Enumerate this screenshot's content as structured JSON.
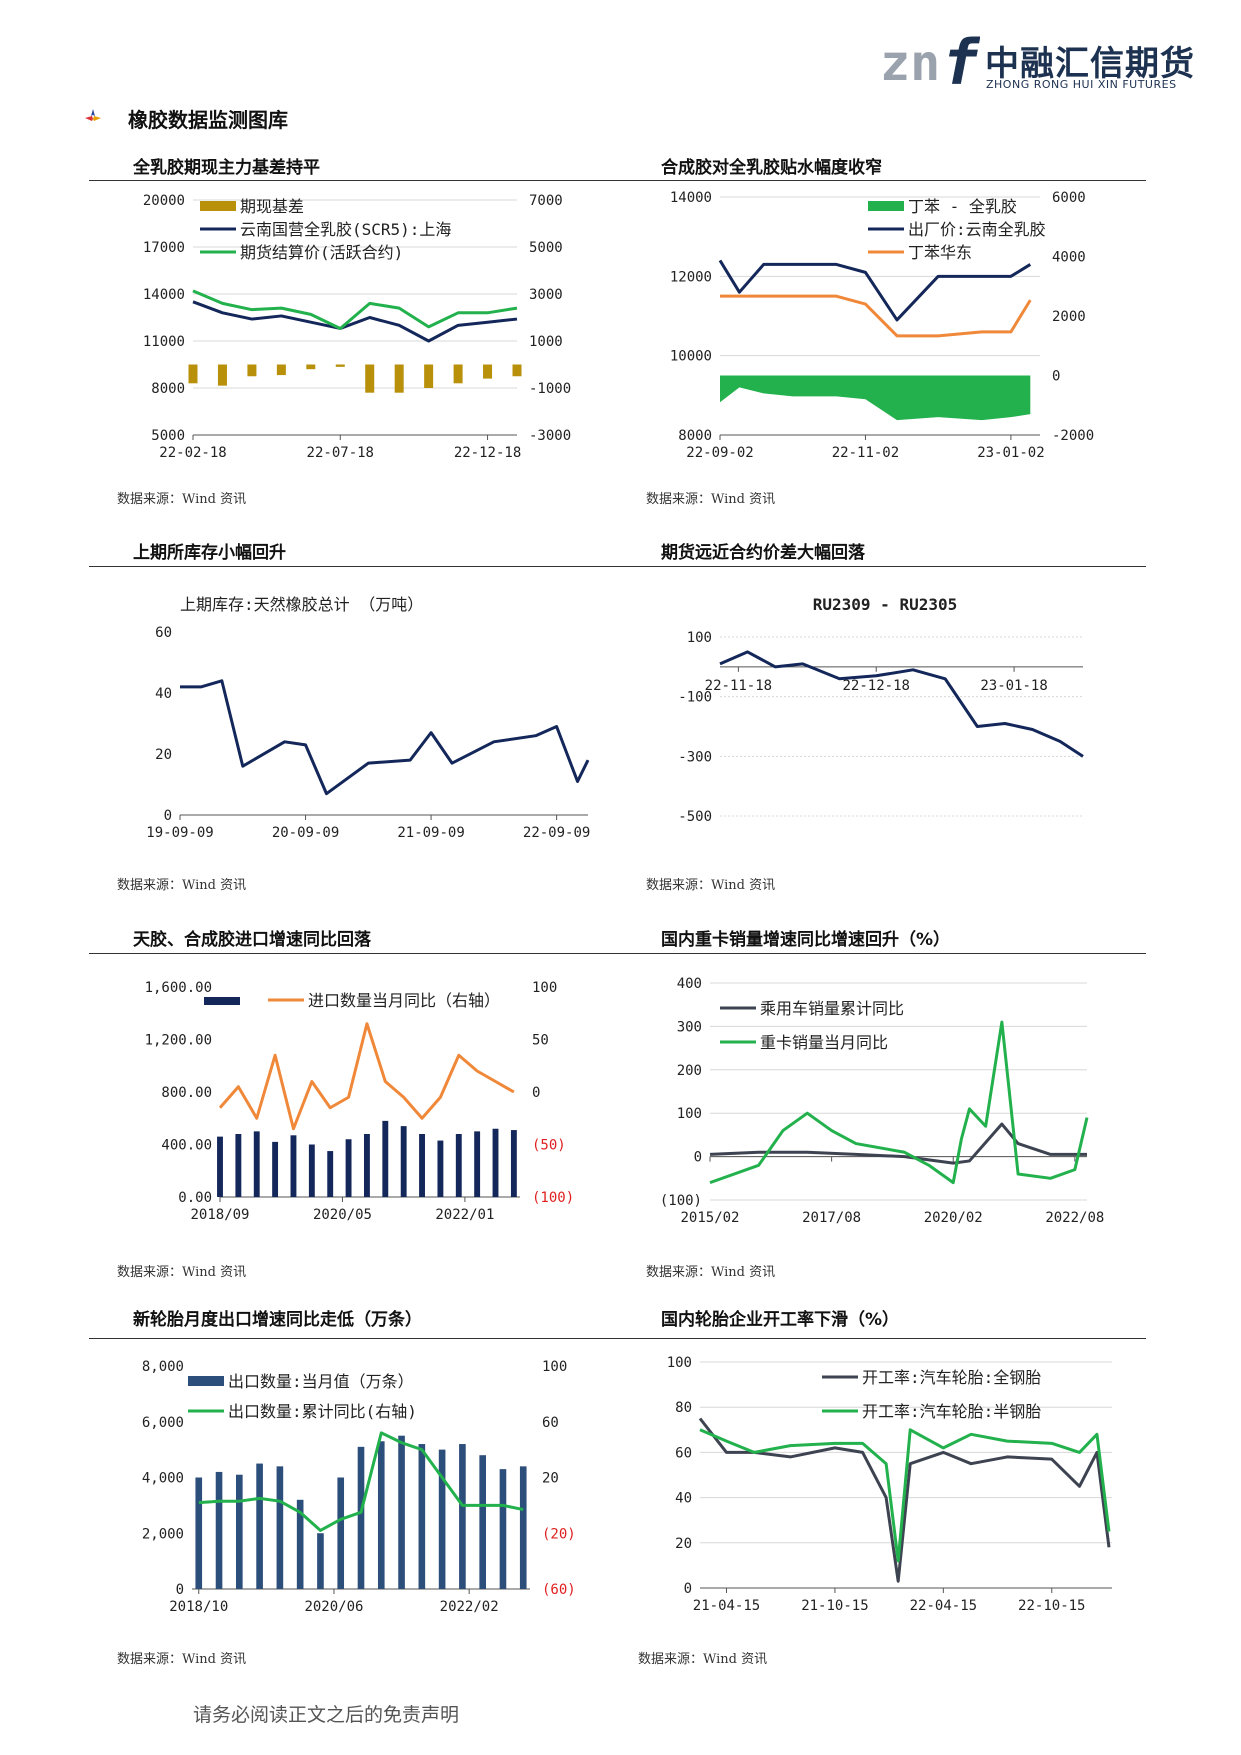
{
  "brand": {
    "mark": "znf",
    "name_cn": "中融汇信期货",
    "name_en": "ZHONG RONG HUI XIN FUTURES",
    "colors": {
      "navy": "#1d3150",
      "grey": "#9aa3ad"
    }
  },
  "section_title": "橡胶数据监测图库",
  "footer": "请务必阅读正文之后的免责声明",
  "charts": [
    {
      "title": "全乳胶期现主力基差持平",
      "source": "数据来源：Wind 资讯"
    },
    {
      "title": "合成胶对全乳胶贴水幅度收窄",
      "source": "数据来源：Wind 资讯"
    },
    {
      "title": "上期所库存小幅回升",
      "source": "数据来源：Wind 资讯"
    },
    {
      "title": "期货远近合约价差大幅回落",
      "source": "数据来源：Wind 资讯"
    },
    {
      "title": "天胶、合成胶进口增速同比回落",
      "source": "数据来源：Wind 资讯"
    },
    {
      "title": "国内重卡销量增速同比增速回升（%）",
      "source": "数据来源：Wind 资讯"
    },
    {
      "title": "新轮胎月度出口增速同比走低（万条）",
      "source": "数据来源：Wind 资讯"
    },
    {
      "title": "国内轮胎企业开工率下滑（%）",
      "source": "数据来源：Wind 资讯"
    }
  ],
  "chart_data": [
    {
      "type": "line",
      "title": "",
      "left_ticks": [
        "20000",
        "17000",
        "14000",
        "11000",
        "8000",
        "5000"
      ],
      "right_ticks": [
        "7000",
        "5000",
        "3000",
        "1000",
        "-1000",
        "-3000"
      ],
      "x_ticks": [
        "22-02-18",
        "22-07-18",
        "22-12-18"
      ],
      "ylim_left": [
        5000,
        20000
      ],
      "ylim_right": [
        -3000,
        7000
      ],
      "series": [
        {
          "name": "期现基差",
          "kind": "bar",
          "axis": "right",
          "color": "#b8900a",
          "x": [
            "22-02-18",
            "22-03-18",
            "22-04-18",
            "22-05-18",
            "22-06-18",
            "22-07-18",
            "22-08-18",
            "22-09-18",
            "22-10-18",
            "22-11-18",
            "22-12-18",
            "23-01-18"
          ],
          "values": [
            -800,
            -900,
            -500,
            -450,
            -200,
            -100,
            -1200,
            -1200,
            -1000,
            -800,
            -600,
            -500
          ]
        },
        {
          "name": "云南国营全乳胶(SCR5):上海",
          "kind": "line",
          "axis": "left",
          "color": "#14275a",
          "x": [
            "22-02-18",
            "22-03-18",
            "22-04-18",
            "22-05-18",
            "22-06-18",
            "22-07-18",
            "22-08-18",
            "22-09-18",
            "22-10-18",
            "22-11-18",
            "22-12-18",
            "23-01-18"
          ],
          "values": [
            13500,
            12800,
            12400,
            12600,
            12200,
            11800,
            12500,
            12000,
            11000,
            12000,
            12200,
            12400
          ]
        },
        {
          "name": "期货结算价(活跃合约)",
          "kind": "line",
          "axis": "left",
          "color": "#22b14c",
          "x": [
            "22-02-18",
            "22-03-18",
            "22-04-18",
            "22-05-18",
            "22-06-18",
            "22-07-18",
            "22-08-18",
            "22-09-18",
            "22-10-18",
            "22-11-18",
            "22-12-18",
            "23-01-18"
          ],
          "values": [
            14200,
            13400,
            13000,
            13100,
            12700,
            11800,
            13400,
            13100,
            11900,
            12800,
            12800,
            13100
          ]
        }
      ]
    },
    {
      "type": "line",
      "title": "",
      "left_ticks": [
        "14000",
        "12000",
        "10000",
        "8000"
      ],
      "right_ticks": [
        "6000",
        "4000",
        "2000",
        "0",
        "-2000"
      ],
      "x_ticks": [
        "22-09-02",
        "22-11-02",
        "23-01-02"
      ],
      "ylim_left": [
        8000,
        14000
      ],
      "ylim_right": [
        -2000,
        6000
      ],
      "series": [
        {
          "name": "丁苯 - 全乳胶",
          "kind": "area",
          "axis": "right",
          "color": "#22b14c",
          "x": [
            "22-09-02",
            "22-09-10",
            "22-09-20",
            "22-10-02",
            "22-10-20",
            "22-11-02",
            "22-11-15",
            "22-12-02",
            "22-12-20",
            "23-01-02",
            "23-01-10"
          ],
          "values": [
            -900,
            -400,
            -600,
            -700,
            -700,
            -800,
            -1500,
            -1400,
            -1500,
            -1400,
            -1300
          ]
        },
        {
          "name": "出厂价:云南全乳胶",
          "kind": "line",
          "axis": "left",
          "color": "#14275a",
          "x": [
            "22-09-02",
            "22-09-10",
            "22-09-20",
            "22-10-02",
            "22-10-20",
            "22-11-02",
            "22-11-15",
            "22-12-02",
            "22-12-20",
            "23-01-02",
            "23-01-10"
          ],
          "values": [
            12400,
            11600,
            12300,
            12300,
            12300,
            12100,
            10900,
            12000,
            12000,
            12000,
            12300
          ]
        },
        {
          "name": "丁苯华东",
          "kind": "line",
          "axis": "left",
          "color": "#f0883a",
          "x": [
            "22-09-02",
            "22-09-10",
            "22-09-20",
            "22-10-02",
            "22-10-20",
            "22-11-02",
            "22-11-15",
            "22-12-02",
            "22-12-20",
            "23-01-02",
            "23-01-10"
          ],
          "values": [
            11500,
            11500,
            11500,
            11500,
            11500,
            11300,
            10500,
            10500,
            10600,
            10600,
            11400
          ]
        }
      ]
    },
    {
      "type": "line",
      "title": "上期库存:天然橡胶总计 （万吨）",
      "y_ticks": [
        "60",
        "40",
        "20",
        "0"
      ],
      "x_ticks": [
        "19-09-09",
        "20-09-09",
        "21-09-09",
        "22-09-09"
      ],
      "ylim": [
        0,
        60
      ],
      "series": [
        {
          "name": "",
          "color": "#14275a",
          "x": [
            "19-09-09",
            "19-11-09",
            "20-01-09",
            "20-03-09",
            "20-07-09",
            "20-09-09",
            "20-11-09",
            "21-03-09",
            "21-07-09",
            "21-09-09",
            "21-11-09",
            "22-03-09",
            "22-07-09",
            "22-09-09",
            "22-11-09",
            "22-12-09"
          ],
          "values": [
            42,
            42,
            44,
            16,
            24,
            23,
            7,
            17,
            18,
            27,
            17,
            24,
            26,
            29,
            11,
            18
          ]
        }
      ]
    },
    {
      "type": "line",
      "title": "RU2309 - RU2305",
      "y_ticks": [
        "100",
        "-100",
        "-300",
        "-500"
      ],
      "x_ticks": [
        "22-11-18",
        "22-12-18",
        "23-01-18"
      ],
      "ylim": [
        -500,
        100
      ],
      "series": [
        {
          "name": "",
          "color": "#14275a",
          "x": [
            "22-11-14",
            "22-11-20",
            "22-11-26",
            "22-12-02",
            "22-12-10",
            "22-12-18",
            "22-12-26",
            "23-01-03",
            "23-01-10",
            "23-01-16",
            "23-01-22",
            "23-01-28",
            "23-02-03"
          ],
          "values": [
            10,
            50,
            0,
            10,
            -40,
            -30,
            -10,
            -40,
            -200,
            -190,
            -210,
            -250,
            -300
          ]
        }
      ]
    },
    {
      "type": "bar",
      "title": "",
      "left_ticks": [
        "1,600.00",
        "1,200.00",
        "800.00",
        "400.00",
        "0.00"
      ],
      "right_ticks": [
        "100",
        "50",
        "0",
        "(50)",
        "(100)"
      ],
      "x_ticks": [
        "2018/09",
        "2020/05",
        "2022/01"
      ],
      "ylim_left": [
        0,
        1600
      ],
      "ylim_right": [
        -100,
        100
      ],
      "series": [
        {
          "name": "",
          "kind": "bar",
          "axis": "left",
          "color": "#14275a",
          "x": [
            "2018/09",
            "2018/12",
            "2019/03",
            "2019/06",
            "2019/09",
            "2019/12",
            "2020/03",
            "2020/06",
            "2020/09",
            "2020/12",
            "2021/03",
            "2021/06",
            "2021/09",
            "2021/12",
            "2022/03",
            "2022/06",
            "2022/09"
          ],
          "values": [
            460,
            480,
            500,
            420,
            470,
            400,
            350,
            440,
            480,
            580,
            540,
            480,
            430,
            480,
            500,
            520,
            510
          ]
        },
        {
          "name": "进口数量当月同比（右轴）",
          "kind": "line",
          "axis": "right",
          "color": "#f0883a",
          "x": [
            "2018/09",
            "2018/12",
            "2019/03",
            "2019/06",
            "2019/09",
            "2019/12",
            "2020/03",
            "2020/06",
            "2020/09",
            "2020/12",
            "2021/03",
            "2021/06",
            "2021/09",
            "2021/12",
            "2022/03",
            "2022/06",
            "2022/09"
          ],
          "values": [
            -15,
            5,
            -25,
            35,
            -35,
            10,
            -15,
            -5,
            65,
            10,
            -5,
            -25,
            -5,
            35,
            20,
            10,
            0
          ]
        }
      ]
    },
    {
      "type": "line",
      "title": "",
      "y_ticks": [
        "400",
        "300",
        "200",
        "100",
        "0",
        "(100)"
      ],
      "x_ticks": [
        "2015/02",
        "2017/08",
        "2020/02",
        "2022/08"
      ],
      "ylim": [
        -100,
        400
      ],
      "series": [
        {
          "name": "乘用车销量累计同比",
          "color": "#3d4350",
          "x": [
            "2015/02",
            "2016/02",
            "2017/02",
            "2018/02",
            "2019/02",
            "2020/02",
            "2020/06",
            "2021/02",
            "2021/06",
            "2022/02",
            "2022/08",
            "2022/11"
          ],
          "values": [
            5,
            10,
            10,
            5,
            0,
            -15,
            -10,
            75,
            30,
            5,
            5,
            5
          ]
        },
        {
          "name": "重卡销量当月同比",
          "color": "#22b14c",
          "x": [
            "2015/02",
            "2016/02",
            "2016/08",
            "2017/02",
            "2017/08",
            "2018/02",
            "2019/02",
            "2019/08",
            "2020/02",
            "2020/04",
            "2020/06",
            "2020/10",
            "2021/02",
            "2021/06",
            "2022/02",
            "2022/08",
            "2022/11"
          ],
          "values": [
            -60,
            -20,
            60,
            100,
            60,
            30,
            10,
            -20,
            -60,
            40,
            110,
            70,
            310,
            -40,
            -50,
            -30,
            90
          ]
        }
      ]
    },
    {
      "type": "bar",
      "title": "",
      "left_ticks": [
        "8,000",
        "6,000",
        "4,000",
        "2,000",
        "0"
      ],
      "right_ticks": [
        "100",
        "60",
        "20",
        "(20)",
        "(60)"
      ],
      "x_ticks": [
        "2018/10",
        "2020/06",
        "2022/02"
      ],
      "ylim_left": [
        0,
        8000
      ],
      "ylim_right": [
        -60,
        100
      ],
      "series": [
        {
          "name": "出口数量:当月值（万条）",
          "kind": "bar",
          "axis": "left",
          "color": "#2c4e7b",
          "x": [
            "2018/10",
            "2019/01",
            "2019/04",
            "2019/07",
            "2019/10",
            "2020/01",
            "2020/04",
            "2020/07",
            "2020/10",
            "2021/01",
            "2021/04",
            "2021/07",
            "2021/10",
            "2022/01",
            "2022/04",
            "2022/07",
            "2022/10"
          ],
          "values": [
            4000,
            4200,
            4100,
            4500,
            4400,
            3200,
            2000,
            4000,
            5100,
            5300,
            5500,
            5200,
            5000,
            5200,
            4800,
            4300,
            4400
          ]
        },
        {
          "name": "出口数量:累计同比(右轴)",
          "kind": "line",
          "axis": "right",
          "color": "#22b14c",
          "x": [
            "2018/10",
            "2019/01",
            "2019/04",
            "2019/07",
            "2019/10",
            "2020/01",
            "2020/04",
            "2020/07",
            "2020/10",
            "2021/01",
            "2021/04",
            "2021/07",
            "2021/10",
            "2022/01",
            "2022/04",
            "2022/07",
            "2022/10"
          ],
          "values": [
            2,
            3,
            3,
            5,
            3,
            -5,
            -18,
            -10,
            -5,
            52,
            45,
            40,
            20,
            0,
            0,
            0,
            -3
          ]
        }
      ]
    },
    {
      "type": "line",
      "title": "",
      "y_ticks": [
        "100",
        "80",
        "60",
        "40",
        "20",
        "0"
      ],
      "x_ticks": [
        "21-04-15",
        "21-10-15",
        "22-04-15",
        "22-10-15"
      ],
      "ylim": [
        0,
        100
      ],
      "series": [
        {
          "name": "开工率:汽车轮胎:全钢胎",
          "color": "#3d4350",
          "x": [
            "21-03-01",
            "21-04-15",
            "21-06-01",
            "21-08-01",
            "21-10-15",
            "21-12-01",
            "22-01-10",
            "22-01-30",
            "22-02-20",
            "22-04-15",
            "22-06-01",
            "22-08-01",
            "22-10-15",
            "22-12-01",
            "22-12-30",
            "23-01-20"
          ],
          "values": [
            75,
            60,
            60,
            58,
            62,
            60,
            40,
            3,
            55,
            60,
            55,
            58,
            57,
            45,
            60,
            18
          ]
        },
        {
          "name": "开工率:汽车轮胎:半钢胎",
          "color": "#22b14c",
          "x": [
            "21-03-01",
            "21-04-15",
            "21-06-01",
            "21-08-01",
            "21-10-15",
            "21-12-01",
            "22-01-10",
            "22-01-30",
            "22-02-20",
            "22-04-15",
            "22-06-01",
            "22-08-01",
            "22-10-15",
            "22-12-01",
            "22-12-30",
            "23-01-20"
          ],
          "values": [
            70,
            65,
            60,
            63,
            64,
            64,
            55,
            12,
            70,
            62,
            68,
            65,
            64,
            60,
            68,
            25
          ]
        }
      ]
    }
  ]
}
